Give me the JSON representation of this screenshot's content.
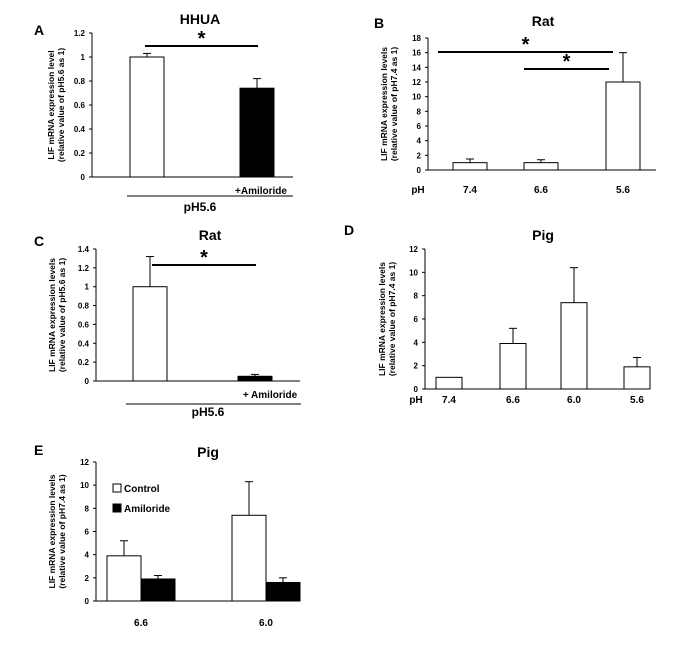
{
  "chart_data": [
    {
      "label": "A",
      "type": "bar",
      "title": "HHUA",
      "ylabel": [
        "LIF mRNA expression level",
        "(relative value of pH5.6 as 1)"
      ],
      "ylim": [
        0,
        1.2
      ],
      "yticks": [
        "0",
        "0.2",
        "0.4",
        "0.6",
        "0.8",
        "1",
        "1.2"
      ],
      "categories": [
        "",
        ""
      ],
      "values": [
        1.0,
        0.74
      ],
      "errors": [
        0.03,
        0.08
      ],
      "fills": [
        "#ffffff",
        "#000000"
      ],
      "significance": [
        {
          "from": 0,
          "to": 1,
          "label": "*"
        }
      ],
      "below_label": "+Amiloride",
      "group_label": "pH5.6"
    },
    {
      "label": "B",
      "type": "bar",
      "title": "Rat",
      "ylabel": [
        "LIF mRNA expression levels",
        "(relative value of pH7.4 as 1)"
      ],
      "ylim": [
        0,
        18
      ],
      "yticks": [
        "0",
        "2",
        "4",
        "6",
        "8",
        "10",
        "12",
        "14",
        "16",
        "18"
      ],
      "axis_prefix": "pH",
      "categories": [
        "7.4",
        "6.6",
        "5.6"
      ],
      "values": [
        1.0,
        1.0,
        12.0
      ],
      "errors": [
        0.5,
        0.4,
        4.0
      ],
      "fills": [
        "#ffffff",
        "#ffffff",
        "#ffffff"
      ],
      "significance": [
        {
          "from": 0,
          "to": 2,
          "label": "*"
        },
        {
          "from": 1,
          "to": 2,
          "label": "*"
        }
      ]
    },
    {
      "label": "C",
      "type": "bar",
      "title": "Rat",
      "ylabel": [
        "LIF mRNA expression levels",
        "(relative value of pH5.6 as 1)"
      ],
      "ylim": [
        0,
        1.4
      ],
      "yticks": [
        "0",
        "0.2",
        "0.4",
        "0.6",
        "0.8",
        "1",
        "1.2",
        "1.4"
      ],
      "categories": [
        "",
        ""
      ],
      "values": [
        1.0,
        0.05
      ],
      "errors": [
        0.32,
        0.02
      ],
      "fills": [
        "#ffffff",
        "#000000"
      ],
      "significance": [
        {
          "from": 0,
          "to": 1,
          "label": "*"
        }
      ],
      "below_label": "+ Amiloride",
      "group_label": "pH5.6"
    },
    {
      "label": "D",
      "type": "bar",
      "title": "Pig",
      "ylabel": [
        "LIF mRNA expression levels",
        "(relative value of pH7.4 as 1)"
      ],
      "ylim": [
        0,
        12
      ],
      "yticks": [
        "0",
        "2",
        "4",
        "6",
        "8",
        "10",
        "12"
      ],
      "axis_prefix": "pH",
      "categories": [
        "7.4",
        "6.6",
        "6.0",
        "5.6"
      ],
      "values": [
        1.0,
        3.9,
        7.4,
        1.9
      ],
      "errors": [
        0,
        1.3,
        3.0,
        0.8
      ],
      "fills": [
        "#ffffff",
        "#ffffff",
        "#ffffff",
        "#ffffff"
      ],
      "significance": []
    },
    {
      "label": "E",
      "type": "bar",
      "title": "Pig",
      "ylabel": [
        "LIF mRNA expression levels",
        "(relative value of pH7.4 as 1)"
      ],
      "ylim": [
        0,
        12
      ],
      "yticks": [
        "0",
        "2",
        "4",
        "6",
        "8",
        "10",
        "12"
      ],
      "categories": [
        "6.6",
        "6.0"
      ],
      "series": [
        {
          "name": "Control",
          "values": [
            3.9,
            7.4
          ],
          "errors": [
            1.3,
            2.9
          ],
          "fill": "#ffffff"
        },
        {
          "name": "Amiloride",
          "values": [
            1.9,
            1.6
          ],
          "errors": [
            0.3,
            0.4
          ],
          "fill": "#000000"
        }
      ],
      "legend": "top-left"
    }
  ]
}
